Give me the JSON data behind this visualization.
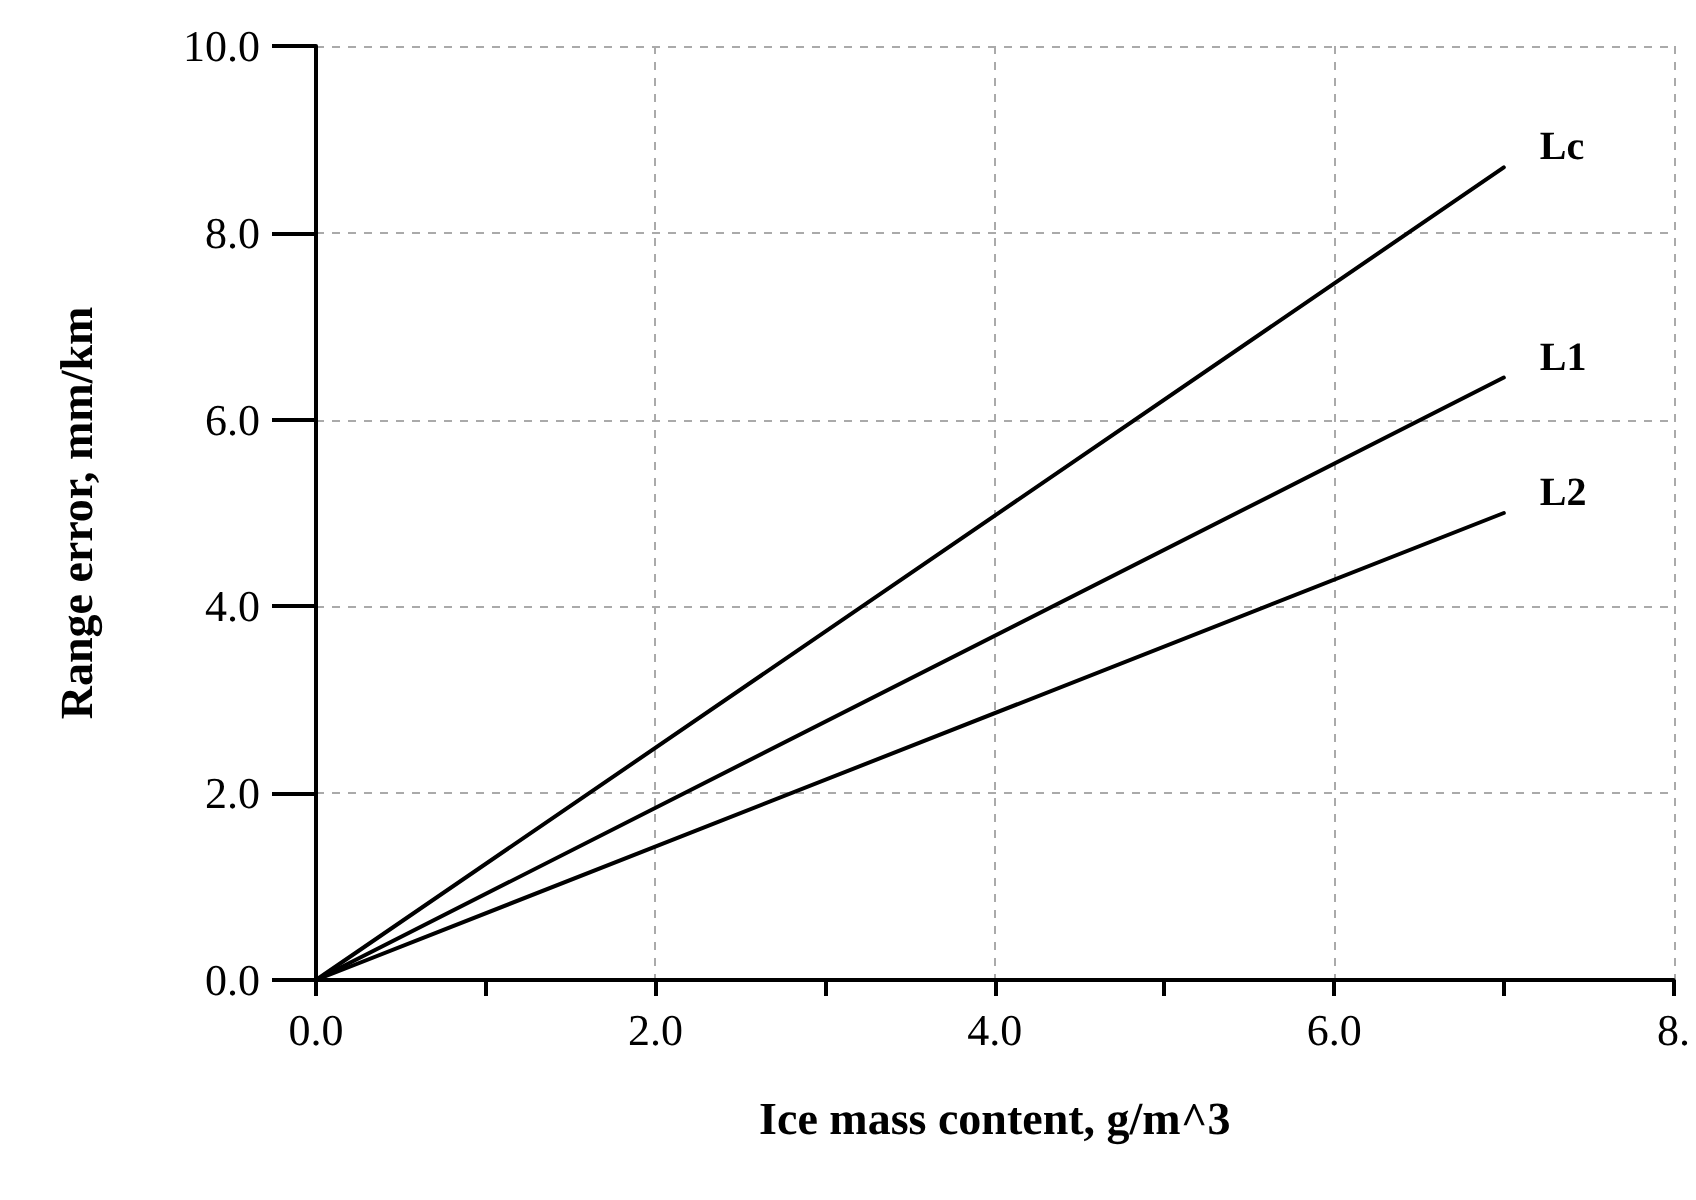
{
  "chart_data": {
    "type": "line",
    "xlabel": "Ice mass content, g/m^3",
    "ylabel": "Range error, mm/km",
    "x": [
      0,
      7
    ],
    "series": [
      {
        "name": "Lc",
        "color": "#000000",
        "values": [
          0,
          8.7
        ]
      },
      {
        "name": "L1",
        "color": "#000000",
        "values": [
          0,
          6.45
        ]
      },
      {
        "name": "L2",
        "color": "#000000",
        "values": [
          0,
          5.0
        ]
      }
    ],
    "xlim": [
      0,
      8
    ],
    "xticks": [
      {
        "value": 0,
        "label": "0.0"
      },
      {
        "value": 1,
        "label": null
      },
      {
        "value": 2,
        "label": "2.0"
      },
      {
        "value": 3,
        "label": null
      },
      {
        "value": 4,
        "label": "4.0"
      },
      {
        "value": 5,
        "label": null
      },
      {
        "value": 6,
        "label": "6.0"
      },
      {
        "value": 7,
        "label": null
      },
      {
        "value": 8,
        "label": "8."
      }
    ],
    "ylim": [
      0,
      10
    ],
    "yticks": [
      {
        "value": 0,
        "label": "0.0"
      },
      {
        "value": 2,
        "label": "2.0"
      },
      {
        "value": 4,
        "label": "4.0"
      },
      {
        "value": 6,
        "label": "6.0"
      },
      {
        "value": 8,
        "label": "8.0"
      },
      {
        "value": 10,
        "label": "10.0"
      }
    ],
    "grid": true,
    "legend": false,
    "marker": "none",
    "line_style": "solid"
  }
}
